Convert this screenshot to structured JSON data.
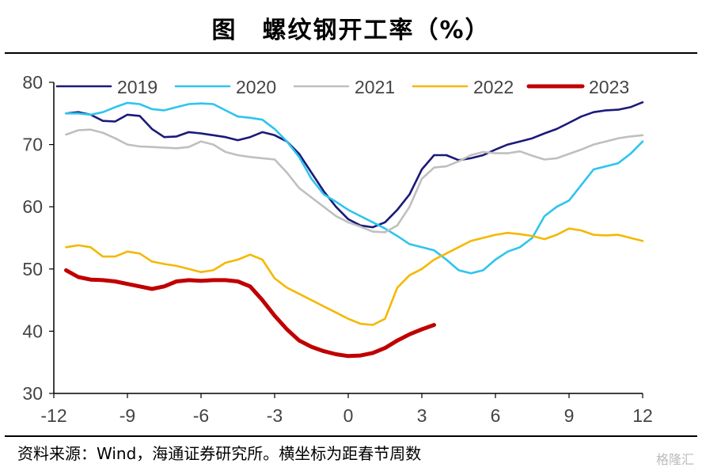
{
  "header": {
    "title": "图　螺纹钢开工率（%）"
  },
  "footer": {
    "source": "资料来源：Wind，海通证券研究所。横坐标为距春节周数",
    "watermark": "格隆汇"
  },
  "chart_data": {
    "type": "line",
    "xlim": [
      -12,
      12
    ],
    "ylim": [
      30,
      80
    ],
    "xticks": [
      -12,
      -9,
      -6,
      -3,
      0,
      3,
      6,
      9,
      12
    ],
    "xtick_labels": [
      "-12",
      "-9",
      "-6",
      "-3",
      "0",
      "3",
      "6",
      "9",
      "12"
    ],
    "yticks": [
      30,
      40,
      50,
      60,
      70,
      80
    ],
    "ytick_labels": [
      "30",
      "40",
      "50",
      "60",
      "70",
      "80"
    ],
    "grid": false,
    "legend_position": "top",
    "series": [
      {
        "name": "2019",
        "color": "#1a1a7a",
        "points": [
          [
            -11.5,
            75.0
          ],
          [
            -11,
            75.2
          ],
          [
            -10.5,
            74.8
          ],
          [
            -10,
            73.8
          ],
          [
            -9.5,
            73.7
          ],
          [
            -9,
            74.8
          ],
          [
            -8.5,
            74.6
          ],
          [
            -8,
            72.5
          ],
          [
            -7.5,
            71.2
          ],
          [
            -7,
            71.3
          ],
          [
            -6.5,
            72.0
          ],
          [
            -6,
            71.8
          ],
          [
            -5.5,
            71.5
          ],
          [
            -5,
            71.2
          ],
          [
            -4.5,
            70.7
          ],
          [
            -4,
            71.2
          ],
          [
            -3.5,
            72.0
          ],
          [
            -3,
            71.5
          ],
          [
            -2.5,
            70.5
          ],
          [
            -2,
            68.5
          ],
          [
            -1.5,
            65.5
          ],
          [
            -1,
            62.5
          ],
          [
            -0.5,
            60.0
          ],
          [
            0,
            58.0
          ],
          [
            0.5,
            57.0
          ],
          [
            1,
            56.7
          ],
          [
            1.5,
            57.5
          ],
          [
            2,
            59.5
          ],
          [
            2.5,
            62.0
          ],
          [
            3,
            66.0
          ],
          [
            3.5,
            68.3
          ],
          [
            4,
            68.3
          ],
          [
            4.5,
            67.5
          ],
          [
            5,
            67.8
          ],
          [
            5.5,
            68.3
          ],
          [
            6,
            69.2
          ],
          [
            6.5,
            70.0
          ],
          [
            7,
            70.5
          ],
          [
            7.5,
            71.0
          ],
          [
            8,
            71.8
          ],
          [
            8.5,
            72.5
          ],
          [
            9,
            73.5
          ],
          [
            9.5,
            74.5
          ],
          [
            10,
            75.2
          ],
          [
            10.5,
            75.5
          ],
          [
            11,
            75.6
          ],
          [
            11.5,
            76.0
          ],
          [
            12,
            76.8
          ]
        ]
      },
      {
        "name": "2020",
        "color": "#2ec4ef",
        "points": [
          [
            -11.5,
            75.0
          ],
          [
            -11,
            75.0
          ],
          [
            -10.5,
            74.8
          ],
          [
            -10,
            75.2
          ],
          [
            -9.5,
            76.0
          ],
          [
            -9,
            76.7
          ],
          [
            -8.5,
            76.5
          ],
          [
            -8,
            75.7
          ],
          [
            -7.5,
            75.5
          ],
          [
            -7,
            76.0
          ],
          [
            -6.5,
            76.5
          ],
          [
            -6,
            76.6
          ],
          [
            -5.5,
            76.5
          ],
          [
            -5,
            75.5
          ],
          [
            -4.5,
            74.5
          ],
          [
            -4,
            74.3
          ],
          [
            -3.5,
            74.0
          ],
          [
            -3,
            72.5
          ],
          [
            -2.5,
            70.5
          ],
          [
            -2,
            68.0
          ],
          [
            -1.5,
            64.5
          ],
          [
            -1,
            62.0
          ],
          [
            -0.5,
            60.8
          ],
          [
            0,
            59.5
          ],
          [
            0.5,
            58.5
          ],
          [
            1,
            57.5
          ],
          [
            1.5,
            56.5
          ],
          [
            2,
            55.3
          ],
          [
            2.5,
            54.0
          ],
          [
            3,
            53.5
          ],
          [
            3.5,
            53.0
          ],
          [
            4,
            51.5
          ],
          [
            4.5,
            49.8
          ],
          [
            5,
            49.3
          ],
          [
            5.5,
            49.8
          ],
          [
            6,
            51.5
          ],
          [
            6.5,
            52.8
          ],
          [
            7,
            53.5
          ],
          [
            7.5,
            55.0
          ],
          [
            8,
            58.5
          ],
          [
            8.5,
            60.0
          ],
          [
            9,
            61.0
          ],
          [
            9.5,
            63.5
          ],
          [
            10,
            66.0
          ],
          [
            10.5,
            66.5
          ],
          [
            11,
            67.0
          ],
          [
            11.5,
            68.5
          ],
          [
            12,
            70.5
          ]
        ]
      },
      {
        "name": "2021",
        "color": "#bfbfbf",
        "points": [
          [
            -11.5,
            71.6
          ],
          [
            -11,
            72.3
          ],
          [
            -10.5,
            72.4
          ],
          [
            -10,
            71.9
          ],
          [
            -9.5,
            71.0
          ],
          [
            -9,
            70.0
          ],
          [
            -8.5,
            69.7
          ],
          [
            -8,
            69.6
          ],
          [
            -7.5,
            69.5
          ],
          [
            -7,
            69.4
          ],
          [
            -6.5,
            69.6
          ],
          [
            -6,
            70.5
          ],
          [
            -5.5,
            70.0
          ],
          [
            -5,
            68.8
          ],
          [
            -4.5,
            68.3
          ],
          [
            -4,
            68.0
          ],
          [
            -3.5,
            67.8
          ],
          [
            -3,
            67.6
          ],
          [
            -2.5,
            65.5
          ],
          [
            -2,
            63.0
          ],
          [
            -1.5,
            61.5
          ],
          [
            -1,
            60.0
          ],
          [
            -0.5,
            58.5
          ],
          [
            0,
            57.5
          ],
          [
            0.5,
            56.8
          ],
          [
            1,
            56.0
          ],
          [
            1.5,
            55.9
          ],
          [
            2,
            57.0
          ],
          [
            2.5,
            60.0
          ],
          [
            3,
            64.5
          ],
          [
            3.5,
            66.3
          ],
          [
            4,
            66.5
          ],
          [
            4.5,
            67.3
          ],
          [
            5,
            68.3
          ],
          [
            5.5,
            68.8
          ],
          [
            6,
            68.6
          ],
          [
            6.5,
            68.6
          ],
          [
            7,
            68.9
          ],
          [
            7.5,
            68.2
          ],
          [
            8,
            67.6
          ],
          [
            8.5,
            67.8
          ],
          [
            9,
            68.5
          ],
          [
            9.5,
            69.2
          ],
          [
            10,
            70.0
          ],
          [
            10.5,
            70.5
          ],
          [
            11,
            71.0
          ],
          [
            11.5,
            71.3
          ],
          [
            12,
            71.5
          ]
        ]
      },
      {
        "name": "2022",
        "color": "#f5b800",
        "points": [
          [
            -11.5,
            53.5
          ],
          [
            -11,
            53.8
          ],
          [
            -10.5,
            53.5
          ],
          [
            -10,
            52.0
          ],
          [
            -9.5,
            52.0
          ],
          [
            -9,
            52.8
          ],
          [
            -8.5,
            52.5
          ],
          [
            -8,
            51.2
          ],
          [
            -7.5,
            50.8
          ],
          [
            -7,
            50.5
          ],
          [
            -6.5,
            50.0
          ],
          [
            -6,
            49.5
          ],
          [
            -5.5,
            49.8
          ],
          [
            -5,
            51.0
          ],
          [
            -4.5,
            51.5
          ],
          [
            -4,
            52.3
          ],
          [
            -3.5,
            51.5
          ],
          [
            -3,
            48.5
          ],
          [
            -2.5,
            47.0
          ],
          [
            -2,
            46.0
          ],
          [
            -1.5,
            45.0
          ],
          [
            -1,
            44.0
          ],
          [
            -0.5,
            43.0
          ],
          [
            0,
            42.0
          ],
          [
            0.5,
            41.2
          ],
          [
            1,
            41.0
          ],
          [
            1.5,
            42.0
          ],
          [
            2,
            47.0
          ],
          [
            2.5,
            49.0
          ],
          [
            3,
            50.0
          ],
          [
            3.5,
            51.5
          ],
          [
            4,
            52.5
          ],
          [
            4.5,
            53.5
          ],
          [
            5,
            54.5
          ],
          [
            5.5,
            55.0
          ],
          [
            6,
            55.5
          ],
          [
            6.5,
            55.8
          ],
          [
            7,
            55.6
          ],
          [
            7.5,
            55.3
          ],
          [
            8,
            54.8
          ],
          [
            8.5,
            55.5
          ],
          [
            9,
            56.5
          ],
          [
            9.5,
            56.2
          ],
          [
            10,
            55.5
          ],
          [
            10.5,
            55.4
          ],
          [
            11,
            55.5
          ],
          [
            11.5,
            55.0
          ],
          [
            12,
            54.5
          ]
        ]
      },
      {
        "name": "2023",
        "color": "#c00000",
        "points": [
          [
            -11.5,
            49.8
          ],
          [
            -11,
            48.7
          ],
          [
            -10.5,
            48.3
          ],
          [
            -10,
            48.2
          ],
          [
            -9.5,
            48.0
          ],
          [
            -9,
            47.6
          ],
          [
            -8.5,
            47.2
          ],
          [
            -8,
            46.8
          ],
          [
            -7.5,
            47.2
          ],
          [
            -7,
            48.0
          ],
          [
            -6.5,
            48.2
          ],
          [
            -6,
            48.1
          ],
          [
            -5.5,
            48.2
          ],
          [
            -5,
            48.2
          ],
          [
            -4.5,
            48.0
          ],
          [
            -4,
            47.2
          ],
          [
            -3.5,
            45.0
          ],
          [
            -3,
            42.5
          ],
          [
            -2.5,
            40.3
          ],
          [
            -2,
            38.5
          ],
          [
            -1.5,
            37.5
          ],
          [
            -1,
            36.8
          ],
          [
            -0.5,
            36.3
          ],
          [
            0,
            36.0
          ],
          [
            0.5,
            36.1
          ],
          [
            1,
            36.5
          ],
          [
            1.5,
            37.3
          ],
          [
            2,
            38.5
          ],
          [
            2.5,
            39.5
          ],
          [
            3,
            40.3
          ],
          [
            3.5,
            41.0
          ]
        ]
      }
    ]
  }
}
